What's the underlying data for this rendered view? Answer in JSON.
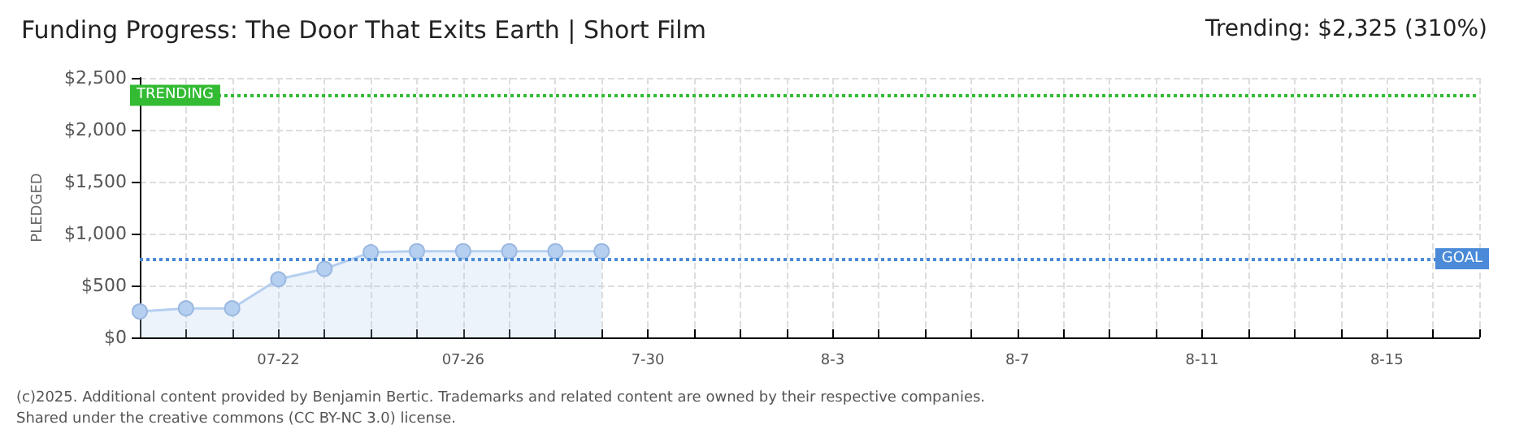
{
  "chart_data": {
    "type": "area",
    "title": "Funding Progress: The Door That Exits Earth | Short Film",
    "subtitle": "Trending: $2,325 (310%)",
    "ylabel": "PLEDGED",
    "categories": [
      null,
      null,
      null,
      "07-22",
      null,
      null,
      null,
      "07-26",
      null,
      null,
      null,
      "7-30",
      null,
      null,
      null,
      "8-3",
      null,
      null,
      null,
      "8-7",
      null,
      null,
      null,
      "8-11",
      null,
      null,
      null,
      "8-15",
      null,
      null
    ],
    "series": [
      {
        "color": "#b5cff0",
        "values": [
          250,
          280,
          280,
          560,
          660,
          820,
          830,
          830,
          830,
          830,
          830,
          null,
          null,
          null,
          null,
          null,
          null,
          null,
          null,
          null,
          null,
          null,
          null,
          null,
          null,
          null,
          null,
          null,
          null,
          null
        ]
      }
    ],
    "ylim": [
      0,
      2500
    ],
    "yticks": [
      {
        "value": 0,
        "label": "$0"
      },
      {
        "value": 500,
        "label": "$500"
      },
      {
        "value": 1000,
        "label": "$1,000"
      },
      {
        "value": 1500,
        "label": "$1,500"
      },
      {
        "value": 2000,
        "label": "$2,000"
      },
      {
        "value": 2500,
        "label": "$2,500"
      }
    ],
    "ref_lines": [
      {
        "axis": "y",
        "value": 2325,
        "label": "TRENDING",
        "color": "#33bb33",
        "line_style": "dotted"
      },
      {
        "axis": "y",
        "value": 750,
        "label": "GOAL",
        "color": "#4a8ad8",
        "line_style": "dotted"
      }
    ],
    "grid": true,
    "marker": "circle",
    "annotations": [
      "(c)2025. Additional content provided by Benjamin Bertic. Trademarks and related content are owned by their respective companies.",
      "Shared under the creative commons (CC BY-NC 3.0) license."
    ]
  }
}
